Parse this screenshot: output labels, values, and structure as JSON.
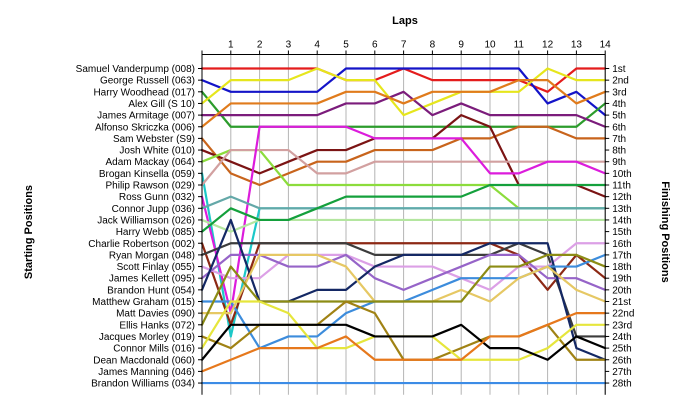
{
  "chart_data": {
    "type": "line",
    "title": "",
    "xlabel": "Laps",
    "ylabel_left": "Starting Positions",
    "ylabel_right": "Finishing Positions",
    "laps": [
      "1",
      "2",
      "3",
      "4",
      "5",
      "6",
      "7",
      "8",
      "9",
      "10",
      "11",
      "12",
      "13",
      "14"
    ],
    "drivers": [
      "Samuel Vanderpump (008)",
      "George Russell (063)",
      "Harry Woodhead (017)",
      "Alex Gill (S 10)",
      "James Armitage (007)",
      "Alfonso Skriczka (006)",
      "Sam Webster (S9)",
      "Josh White (010)",
      "Adam Mackay (064)",
      "Brogan Kinsella (059)",
      "Philip Rawson (029)",
      "Ross Gunn (032)",
      "Connor Jupp (036)",
      "Jack Williamson (026)",
      "Harry Webb (085)",
      "Charlie Robertson (002)",
      "Ryan Morgan (048)",
      "Scott Finlay (055)",
      "James Kellett (095)",
      "Brandon Hunt (054)",
      "Matthew Graham (015)",
      "Matt Davies (090)",
      "Ellis Hanks (072)",
      "Jacques Morley (019)",
      "Connor Mills (016)",
      "Dean Macdonald (060)",
      "James Manning (046)",
      "Brandon Williams (034)"
    ],
    "finishing": [
      "1st",
      "2nd",
      "3rd",
      "4th",
      "5th",
      "6th",
      "7th",
      "8th",
      "9th",
      "10th",
      "11th",
      "12th",
      "13th",
      "14th",
      "15th",
      "16th",
      "17th",
      "18th",
      "19th",
      "20th",
      "21st",
      "22nd",
      "23rd",
      "24th",
      "25th",
      "26th",
      "27th",
      "28th"
    ],
    "series": [
      {
        "start": 1,
        "color": "#e41c1c",
        "positions": [
          1,
          1,
          1,
          1,
          2,
          2,
          1,
          2,
          2,
          2,
          2,
          3,
          1,
          1
        ]
      },
      {
        "start": 2,
        "color": "#1414c8",
        "positions": [
          3,
          3,
          3,
          3,
          1,
          1,
          1,
          1,
          1,
          1,
          1,
          4,
          3,
          5
        ]
      },
      {
        "start": 3,
        "color": "#2c9c2c",
        "positions": [
          6,
          6,
          6,
          6,
          6,
          6,
          6,
          6,
          6,
          6,
          6,
          6,
          6,
          4
        ]
      },
      {
        "start": 4,
        "color": "#e6e61c",
        "positions": [
          2,
          2,
          2,
          1,
          2,
          2,
          5,
          4,
          3,
          3,
          3,
          1,
          2,
          2
        ]
      },
      {
        "start": 5,
        "color": "#7b1c7b",
        "positions": [
          5,
          5,
          5,
          5,
          4,
          4,
          3,
          5,
          4,
          5,
          5,
          5,
          5,
          6
        ]
      },
      {
        "start": 6,
        "color": "#e07b1c",
        "positions": [
          4,
          4,
          4,
          4,
          3,
          3,
          4,
          3,
          3,
          3,
          2,
          2,
          4,
          3
        ]
      },
      {
        "start": 7,
        "color": "#c8641c",
        "positions": [
          10,
          11,
          10,
          9,
          9,
          8,
          8,
          8,
          7,
          7,
          6,
          6,
          7,
          7
        ]
      },
      {
        "start": 8,
        "color": "#7b1414",
        "positions": [
          9,
          10,
          9,
          8,
          8,
          7,
          7,
          7,
          5,
          6,
          11,
          11,
          11,
          12
        ]
      },
      {
        "start": 9,
        "color": "#8cdc3c",
        "positions": [
          8,
          8,
          11,
          11,
          11,
          11,
          11,
          11,
          11,
          11,
          13,
          13,
          13,
          13
        ]
      },
      {
        "start": 10,
        "color": "#1cc8c8",
        "positions": [
          24,
          13,
          13,
          13,
          13,
          13,
          13,
          13,
          13,
          13,
          13,
          13,
          13,
          13
        ]
      },
      {
        "start": 11,
        "color": "#d2a0a0",
        "positions": [
          8,
          8,
          8,
          10,
          10,
          9,
          9,
          9,
          9,
          9,
          9,
          9,
          9,
          9
        ]
      },
      {
        "start": 12,
        "color": "#dc1cdc",
        "positions": [
          22,
          6,
          6,
          6,
          6,
          7,
          7,
          7,
          7,
          10,
          10,
          9,
          9,
          10
        ]
      },
      {
        "start": 13,
        "color": "#64a8a8",
        "positions": [
          12,
          13,
          13,
          13,
          13,
          13,
          13,
          13,
          13,
          13,
          13,
          13,
          13,
          13
        ]
      },
      {
        "start": 14,
        "color": "#b4e6a0",
        "positions": [
          15,
          14,
          14,
          14,
          14,
          14,
          14,
          14,
          14,
          14,
          14,
          14,
          14,
          14
        ]
      },
      {
        "start": 15,
        "color": "#14a03c",
        "positions": [
          13,
          14,
          14,
          13,
          12,
          12,
          12,
          12,
          12,
          11,
          11,
          11,
          11,
          11
        ]
      },
      {
        "start": 16,
        "color": "#8c2814",
        "positions": [
          23,
          16,
          16,
          16,
          16,
          16,
          16,
          16,
          16,
          16,
          17,
          20,
          17,
          19
        ]
      },
      {
        "start": 17,
        "color": "#3c3c3c",
        "positions": [
          16,
          16,
          16,
          16,
          16,
          17,
          17,
          17,
          17,
          17,
          16,
          17,
          24,
          24
        ]
      },
      {
        "start": 18,
        "color": "#dca0e6",
        "positions": [
          19,
          19,
          17,
          17,
          17,
          18,
          18,
          18,
          19,
          20,
          18,
          18,
          16,
          16
        ]
      },
      {
        "start": 19,
        "color": "#9664c8",
        "positions": [
          17,
          17,
          18,
          18,
          17,
          19,
          20,
          19,
          18,
          17,
          17,
          19,
          19,
          20
        ]
      },
      {
        "start": 20,
        "color": "#142864",
        "positions": [
          14,
          21,
          21,
          20,
          20,
          18,
          17,
          17,
          17,
          16,
          16,
          16,
          25,
          26
        ]
      },
      {
        "start": 21,
        "color": "#3c8cdc",
        "positions": [
          21,
          25,
          24,
          24,
          22,
          21,
          21,
          20,
          19,
          19,
          19,
          18,
          18,
          17
        ]
      },
      {
        "start": 22,
        "color": "#e6c864",
        "positions": [
          22,
          17,
          17,
          17,
          18,
          21,
          21,
          21,
          20,
          21,
          19,
          18,
          20,
          21
        ]
      },
      {
        "start": 23,
        "color": "#8c8c14",
        "positions": [
          18,
          21,
          21,
          21,
          21,
          21,
          21,
          21,
          21,
          18,
          18,
          17,
          17,
          18
        ]
      },
      {
        "start": 24,
        "color": "#a08214",
        "positions": [
          25,
          23,
          23,
          23,
          21,
          22,
          26,
          26,
          25,
          24,
          24,
          23,
          26,
          26
        ]
      },
      {
        "start": 25,
        "color": "#e6e63c",
        "positions": [
          21,
          21,
          22,
          25,
          25,
          24,
          24,
          24,
          26,
          26,
          26,
          25,
          23,
          23
        ]
      },
      {
        "start": 26,
        "color": "#000000",
        "positions": [
          23,
          23,
          23,
          23,
          23,
          24,
          24,
          24,
          23,
          25,
          25,
          26,
          24,
          25
        ]
      },
      {
        "start": 27,
        "color": "#e6781c",
        "positions": [
          26,
          25,
          25,
          25,
          24,
          26,
          26,
          26,
          26,
          24,
          24,
          23,
          22,
          22
        ]
      },
      {
        "start": 28,
        "color": "#3c8ce6",
        "positions": [
          28,
          28,
          28,
          28,
          28,
          28,
          28,
          28,
          28,
          28,
          28,
          28,
          28,
          28
        ]
      }
    ]
  }
}
